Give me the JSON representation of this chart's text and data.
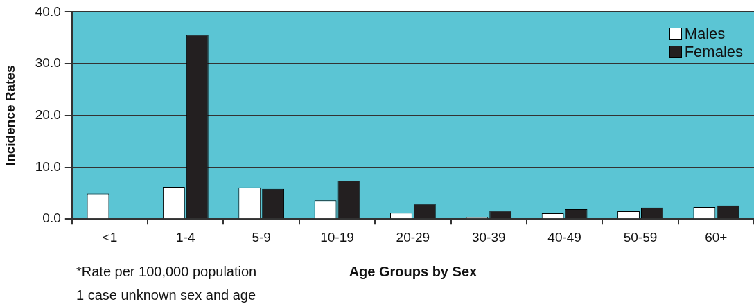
{
  "chart_data": {
    "type": "bar",
    "xlabel": "Age Groups by Sex",
    "ylabel": "Incidence Rates",
    "categories": [
      "<1",
      "1-4",
      "5-9",
      "10-19",
      "20-29",
      "30-39",
      "40-49",
      "50-59",
      "60+"
    ],
    "series": [
      {
        "name": "Males",
        "color": "#ffffff",
        "values": [
          4.9,
          6.2,
          6.1,
          3.6,
          1.2,
          0.3,
          1.1,
          1.5,
          2.3
        ]
      },
      {
        "name": "Females",
        "color": "#231f20",
        "values": [
          null,
          35.6,
          5.8,
          7.4,
          2.9,
          1.6,
          1.9,
          2.2,
          2.6
        ]
      }
    ],
    "ylim": [
      0,
      40
    ],
    "yticks": [
      {
        "value": 0,
        "label": "0.0"
      },
      {
        "value": 10,
        "label": "10.0"
      },
      {
        "value": 20,
        "label": "20.0"
      },
      {
        "value": 30,
        "label": "30.0"
      },
      {
        "value": 40,
        "label": "40.0"
      }
    ],
    "grid": "y",
    "legend": "top right",
    "annotations": [
      "*Rate per 100,000 population",
      "1 case unknown sex and age"
    ]
  }
}
